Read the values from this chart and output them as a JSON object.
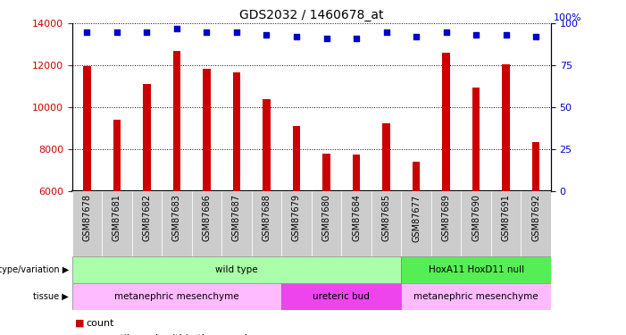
{
  "title": "GDS2032 / 1460678_at",
  "samples": [
    "GSM87678",
    "GSM87681",
    "GSM87682",
    "GSM87683",
    "GSM87686",
    "GSM87687",
    "GSM87688",
    "GSM87679",
    "GSM87680",
    "GSM87684",
    "GSM87685",
    "GSM87677",
    "GSM87689",
    "GSM87690",
    "GSM87691",
    "GSM87692"
  ],
  "counts": [
    11950,
    9400,
    11100,
    12700,
    11850,
    11650,
    10400,
    9100,
    7800,
    7750,
    9250,
    7400,
    12600,
    10950,
    12050,
    8350
  ],
  "percentile_ranks": [
    95,
    95,
    95,
    97,
    95,
    95,
    93,
    92,
    91,
    91,
    95,
    92,
    95,
    93,
    93,
    92
  ],
  "bar_color": "#cc0000",
  "dot_color": "#0000cc",
  "ylim_left": [
    6000,
    14000
  ],
  "yticks_left": [
    6000,
    8000,
    10000,
    12000,
    14000
  ],
  "yticks_right": [
    0,
    25,
    50,
    75,
    100
  ],
  "ylabel_left_color": "#cc0000",
  "ylabel_right_color": "#0000cc",
  "grid_color": "#000000",
  "grid_style": "dotted",
  "genotype_groups": [
    {
      "label": "wild type",
      "start": 0,
      "end": 11,
      "color": "#aaffaa"
    },
    {
      "label": "HoxA11 HoxD11 null",
      "start": 11,
      "end": 16,
      "color": "#55ee55"
    }
  ],
  "tissue_groups": [
    {
      "label": "metanephric mesenchyme",
      "start": 0,
      "end": 7,
      "color": "#ffbbff"
    },
    {
      "label": "ureteric bud",
      "start": 7,
      "end": 11,
      "color": "#ee44ee"
    },
    {
      "label": "metanephric mesenchyme",
      "start": 11,
      "end": 16,
      "color": "#ffbbff"
    }
  ],
  "legend_count_color": "#cc0000",
  "legend_rank_color": "#0000cc",
  "background_color": "#ffffff",
  "tick_label_bg": "#cccccc"
}
